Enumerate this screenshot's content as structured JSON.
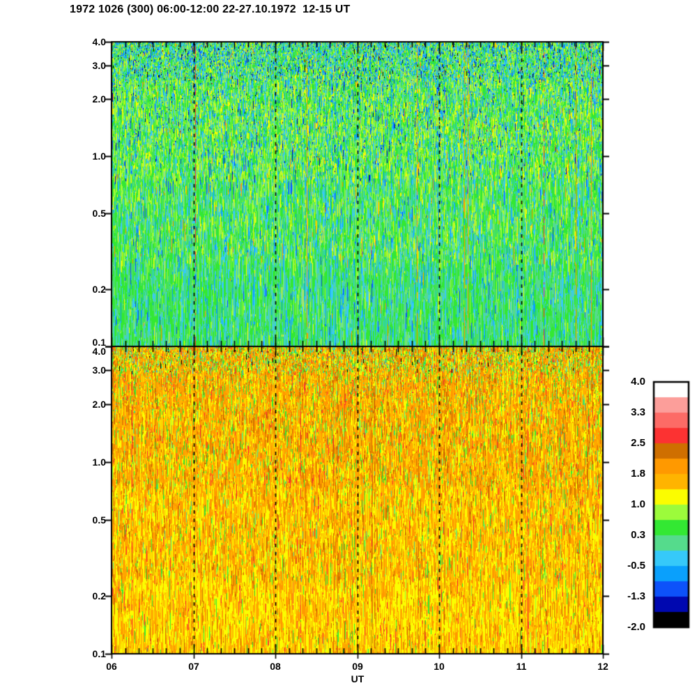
{
  "title": "1972 1026 (300) 06:00-12:00 22-27.10.1972  12-15 UT",
  "chart_data": {
    "type": "heatmap",
    "description": "Two stacked riometer/spectrogram panels, log-scaled vertical axis 0.1-4.0, time axis 06-12 UT with dashed vertical lines at each hour. Upper panel values mostly 0 to 1 (greens/cyans), lower panel values mostly 1 to 2 (oranges/yellows).",
    "xlabel": "UT",
    "x_ticks": [
      "06",
      "07",
      "08",
      "09",
      "10",
      "11",
      "12"
    ],
    "x_tick_hours": [
      6,
      7,
      8,
      9,
      10,
      11,
      12
    ],
    "x_minor_divisions_per_hour": 6,
    "dashed_hour_lines": [
      7,
      8,
      9,
      10,
      11
    ],
    "y_scale": "log",
    "y_range": [
      0.1,
      4.0
    ],
    "y_ticks": [
      "4.0",
      "3.0",
      "2.0",
      "1.0",
      "0.5",
      "0.2",
      "0.1"
    ],
    "y_tick_values": [
      4.0,
      3.0,
      2.0,
      1.0,
      0.5,
      0.2,
      0.1
    ],
    "palette": {
      "white": "#ffffff",
      "pink": "#fc9e9a",
      "salmon": "#fd6b66",
      "red": "#fc3232",
      "dkorange": "#cf6f00",
      "orange": "#ff9900",
      "amber": "#ffb400",
      "yellow": "#fbfd00",
      "ygreen": "#9cfb3b",
      "green": "#33e833",
      "teal": "#55db8c",
      "cyan": "#36c9f9",
      "blue": "#0aa0fc",
      "blue2": "#0d52fa",
      "navy": "#0008b0",
      "black": "#000000"
    },
    "colorbar": {
      "range": [
        -2.0,
        4.0
      ],
      "tick_labels": [
        "4.0",
        "3.3",
        "2.5",
        "1.8",
        "1.0",
        "0.3",
        "-0.5",
        "-1.3",
        "-2.0"
      ],
      "segment_colors_top_to_bottom": [
        "#ffffff",
        "#fc9e9a",
        "#fd6b66",
        "#fc3232",
        "#cf6f00",
        "#ff9900",
        "#ffb400",
        "#fbfd00",
        "#9cfb3b",
        "#33e833",
        "#55db8c",
        "#36c9f9",
        "#0aa0fc",
        "#0d52fa",
        "#0008b0",
        "#000000"
      ]
    },
    "texture_seed": 1972,
    "panels": [
      {
        "name": "upper-panel",
        "dominant_value_range": "-0.5 to 1.0",
        "bands": [
          {
            "until": 0.12,
            "run": 9,
            "weights": {
              "green": 24,
              "ygreen": 16,
              "teal": 15,
              "cyan": 14,
              "blue": 8,
              "yellow": 5,
              "blue2": 3,
              "navy": 2,
              "black": 1,
              "orange": 1,
              "amber": 1
            }
          },
          {
            "until": 0.45,
            "run": 18,
            "weights": {
              "green": 30,
              "ygreen": 22,
              "teal": 13,
              "cyan": 10,
              "yellow": 9,
              "blue": 5,
              "blue2": 2,
              "navy": 1,
              "orange": 1
            }
          },
          {
            "until": 0.72,
            "run": 27,
            "weights": {
              "green": 36,
              "ygreen": 15,
              "teal": 22,
              "cyan": 12,
              "yellow": 5,
              "blue": 4,
              "blue2": 1.5,
              "orange": 0.7
            }
          },
          {
            "until": 1.01,
            "run": 38,
            "weights": {
              "green": 42,
              "teal": 28,
              "cyan": 16,
              "ygreen": 6,
              "blue": 4,
              "blue2": 1,
              "yellow": 1,
              "orange": 0.4
            }
          }
        ],
        "column_effects": [
          {
            "prob": 0.05,
            "color": "cyan",
            "strength": 0.5
          },
          {
            "prob": 0.02,
            "color": "blue",
            "strength": 0.35
          },
          {
            "prob": 0.008,
            "color": "orange",
            "strength": 0.8
          },
          {
            "prob": 0.003,
            "color": "red",
            "strength": 0.5
          }
        ],
        "speckle": {
          "tmax": 0.38,
          "count": 9000,
          "weights": {
            "cyan": 28,
            "blue": 18,
            "ygreen": 16,
            "yellow": 12,
            "blue2": 10,
            "navy": 6,
            "green": 8,
            "black": 2
          }
        }
      },
      {
        "name": "lower-panel",
        "dominant_value_range": "1.0 to 2.0",
        "bands": [
          {
            "until": 0.08,
            "run": 10,
            "weights": {
              "orange": 28,
              "amber": 18,
              "yellow": 14,
              "dkorange": 12,
              "green": 9,
              "ygreen": 7,
              "teal": 5,
              "cyan": 2,
              "red": 2,
              "black": 1
            }
          },
          {
            "until": 0.45,
            "run": 20,
            "weights": {
              "orange": 34,
              "amber": 24,
              "yellow": 18,
              "dkorange": 10,
              "green": 5,
              "ygreen": 4,
              "red": 2,
              "teal": 1
            }
          },
          {
            "until": 0.75,
            "run": 26,
            "weights": {
              "orange": 29,
              "amber": 26,
              "yellow": 29,
              "dkorange": 6,
              "green": 3,
              "ygreen": 3,
              "red": 1.5,
              "teal": 0.5
            }
          },
          {
            "until": 1.01,
            "run": 32,
            "weights": {
              "yellow": 43,
              "amber": 26,
              "orange": 21,
              "dkorange": 4,
              "red": 1.5,
              "green": 2,
              "ygreen": 1
            }
          }
        ],
        "column_effects": [
          {
            "prob": 0.06,
            "color": "yellow",
            "strength": 0.5
          },
          {
            "prob": 0.025,
            "color": "dkorange",
            "strength": 0.5
          },
          {
            "prob": 0.006,
            "color": "red",
            "strength": 0.6
          },
          {
            "prob": 0.01,
            "color": "green",
            "strength": 0.2
          }
        ],
        "speckle": {
          "tmax": 0.22,
          "count": 4000,
          "weights": {
            "green": 24,
            "ygreen": 20,
            "teal": 12,
            "dkorange": 18,
            "yellow": 16,
            "red": 6,
            "cyan": 4
          }
        }
      }
    ]
  }
}
